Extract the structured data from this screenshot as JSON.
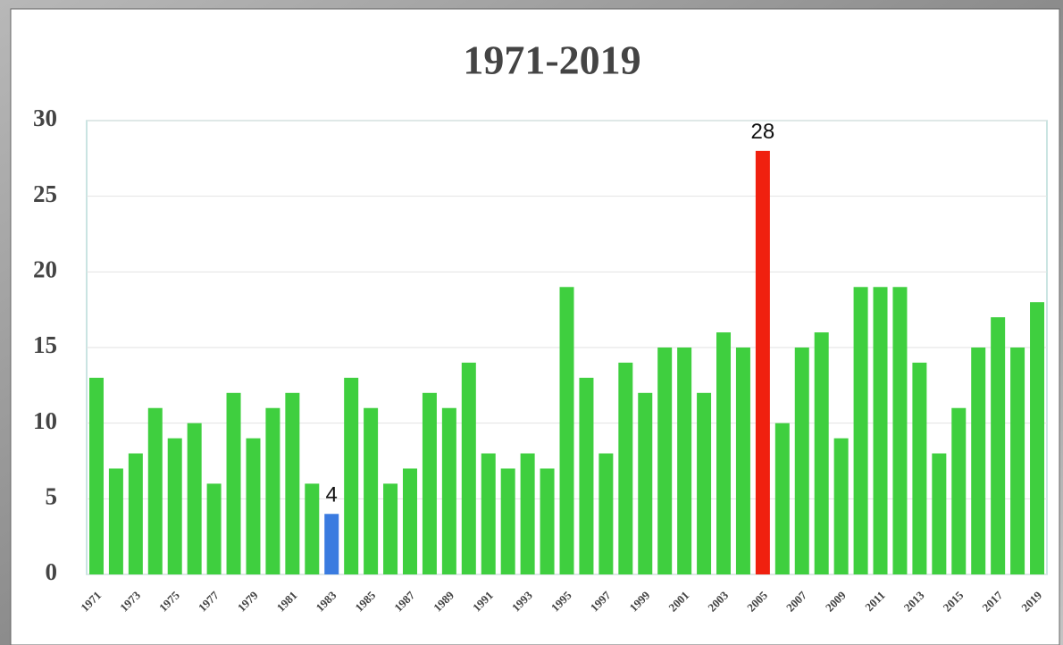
{
  "chart_data": {
    "type": "bar",
    "title": "1971-2019",
    "categories": [
      "1971",
      null,
      "1973",
      null,
      "1975",
      null,
      "1977",
      null,
      "1979",
      null,
      "1981",
      null,
      "1983",
      null,
      "1985",
      null,
      "1987",
      null,
      "1989",
      null,
      "1991",
      null,
      "1993",
      null,
      "1995",
      null,
      "1997",
      null,
      "1999",
      null,
      "2001",
      null,
      "2003",
      null,
      "2005",
      null,
      "2007",
      null,
      "2009",
      null,
      "2011",
      null,
      "2013",
      null,
      "2015",
      null,
      "2017",
      null,
      "2019"
    ],
    "values": [
      13,
      7,
      8,
      11,
      9,
      10,
      6,
      12,
      9,
      11,
      12,
      6,
      4,
      13,
      11,
      6,
      7,
      12,
      11,
      14,
      8,
      7,
      8,
      7,
      19,
      13,
      8,
      14,
      12,
      15,
      15,
      12,
      16,
      15,
      28,
      10,
      15,
      16,
      9,
      19,
      19,
      19,
      14,
      8,
      11,
      15,
      17,
      15,
      18
    ],
    "value_labels": [
      null,
      null,
      null,
      null,
      null,
      null,
      null,
      null,
      null,
      null,
      null,
      null,
      "4",
      null,
      null,
      null,
      null,
      null,
      null,
      null,
      null,
      null,
      null,
      null,
      null,
      null,
      null,
      null,
      null,
      null,
      null,
      null,
      null,
      null,
      "28",
      null,
      null,
      null,
      null,
      null,
      null,
      null,
      null,
      null,
      null,
      null,
      null,
      null,
      null
    ],
    "colors": [
      "#3fcf3f",
      "#3fcf3f",
      "#3fcf3f",
      "#3fcf3f",
      "#3fcf3f",
      "#3fcf3f",
      "#3fcf3f",
      "#3fcf3f",
      "#3fcf3f",
      "#3fcf3f",
      "#3fcf3f",
      "#3fcf3f",
      "#3a7be0",
      "#3fcf3f",
      "#3fcf3f",
      "#3fcf3f",
      "#3fcf3f",
      "#3fcf3f",
      "#3fcf3f",
      "#3fcf3f",
      "#3fcf3f",
      "#3fcf3f",
      "#3fcf3f",
      "#3fcf3f",
      "#3fcf3f",
      "#3fcf3f",
      "#3fcf3f",
      "#3fcf3f",
      "#3fcf3f",
      "#3fcf3f",
      "#3fcf3f",
      "#3fcf3f",
      "#3fcf3f",
      "#3fcf3f",
      "#f0200f",
      "#3fcf3f",
      "#3fcf3f",
      "#3fcf3f",
      "#3fcf3f",
      "#3fcf3f",
      "#3fcf3f",
      "#3fcf3f",
      "#3fcf3f",
      "#3fcf3f",
      "#3fcf3f",
      "#3fcf3f",
      "#3fcf3f",
      "#3fcf3f",
      "#3fcf3f"
    ],
    "ylim": [
      0,
      30
    ],
    "yticks": [
      0,
      5,
      10,
      15,
      20,
      25,
      30
    ],
    "grid": true
  }
}
